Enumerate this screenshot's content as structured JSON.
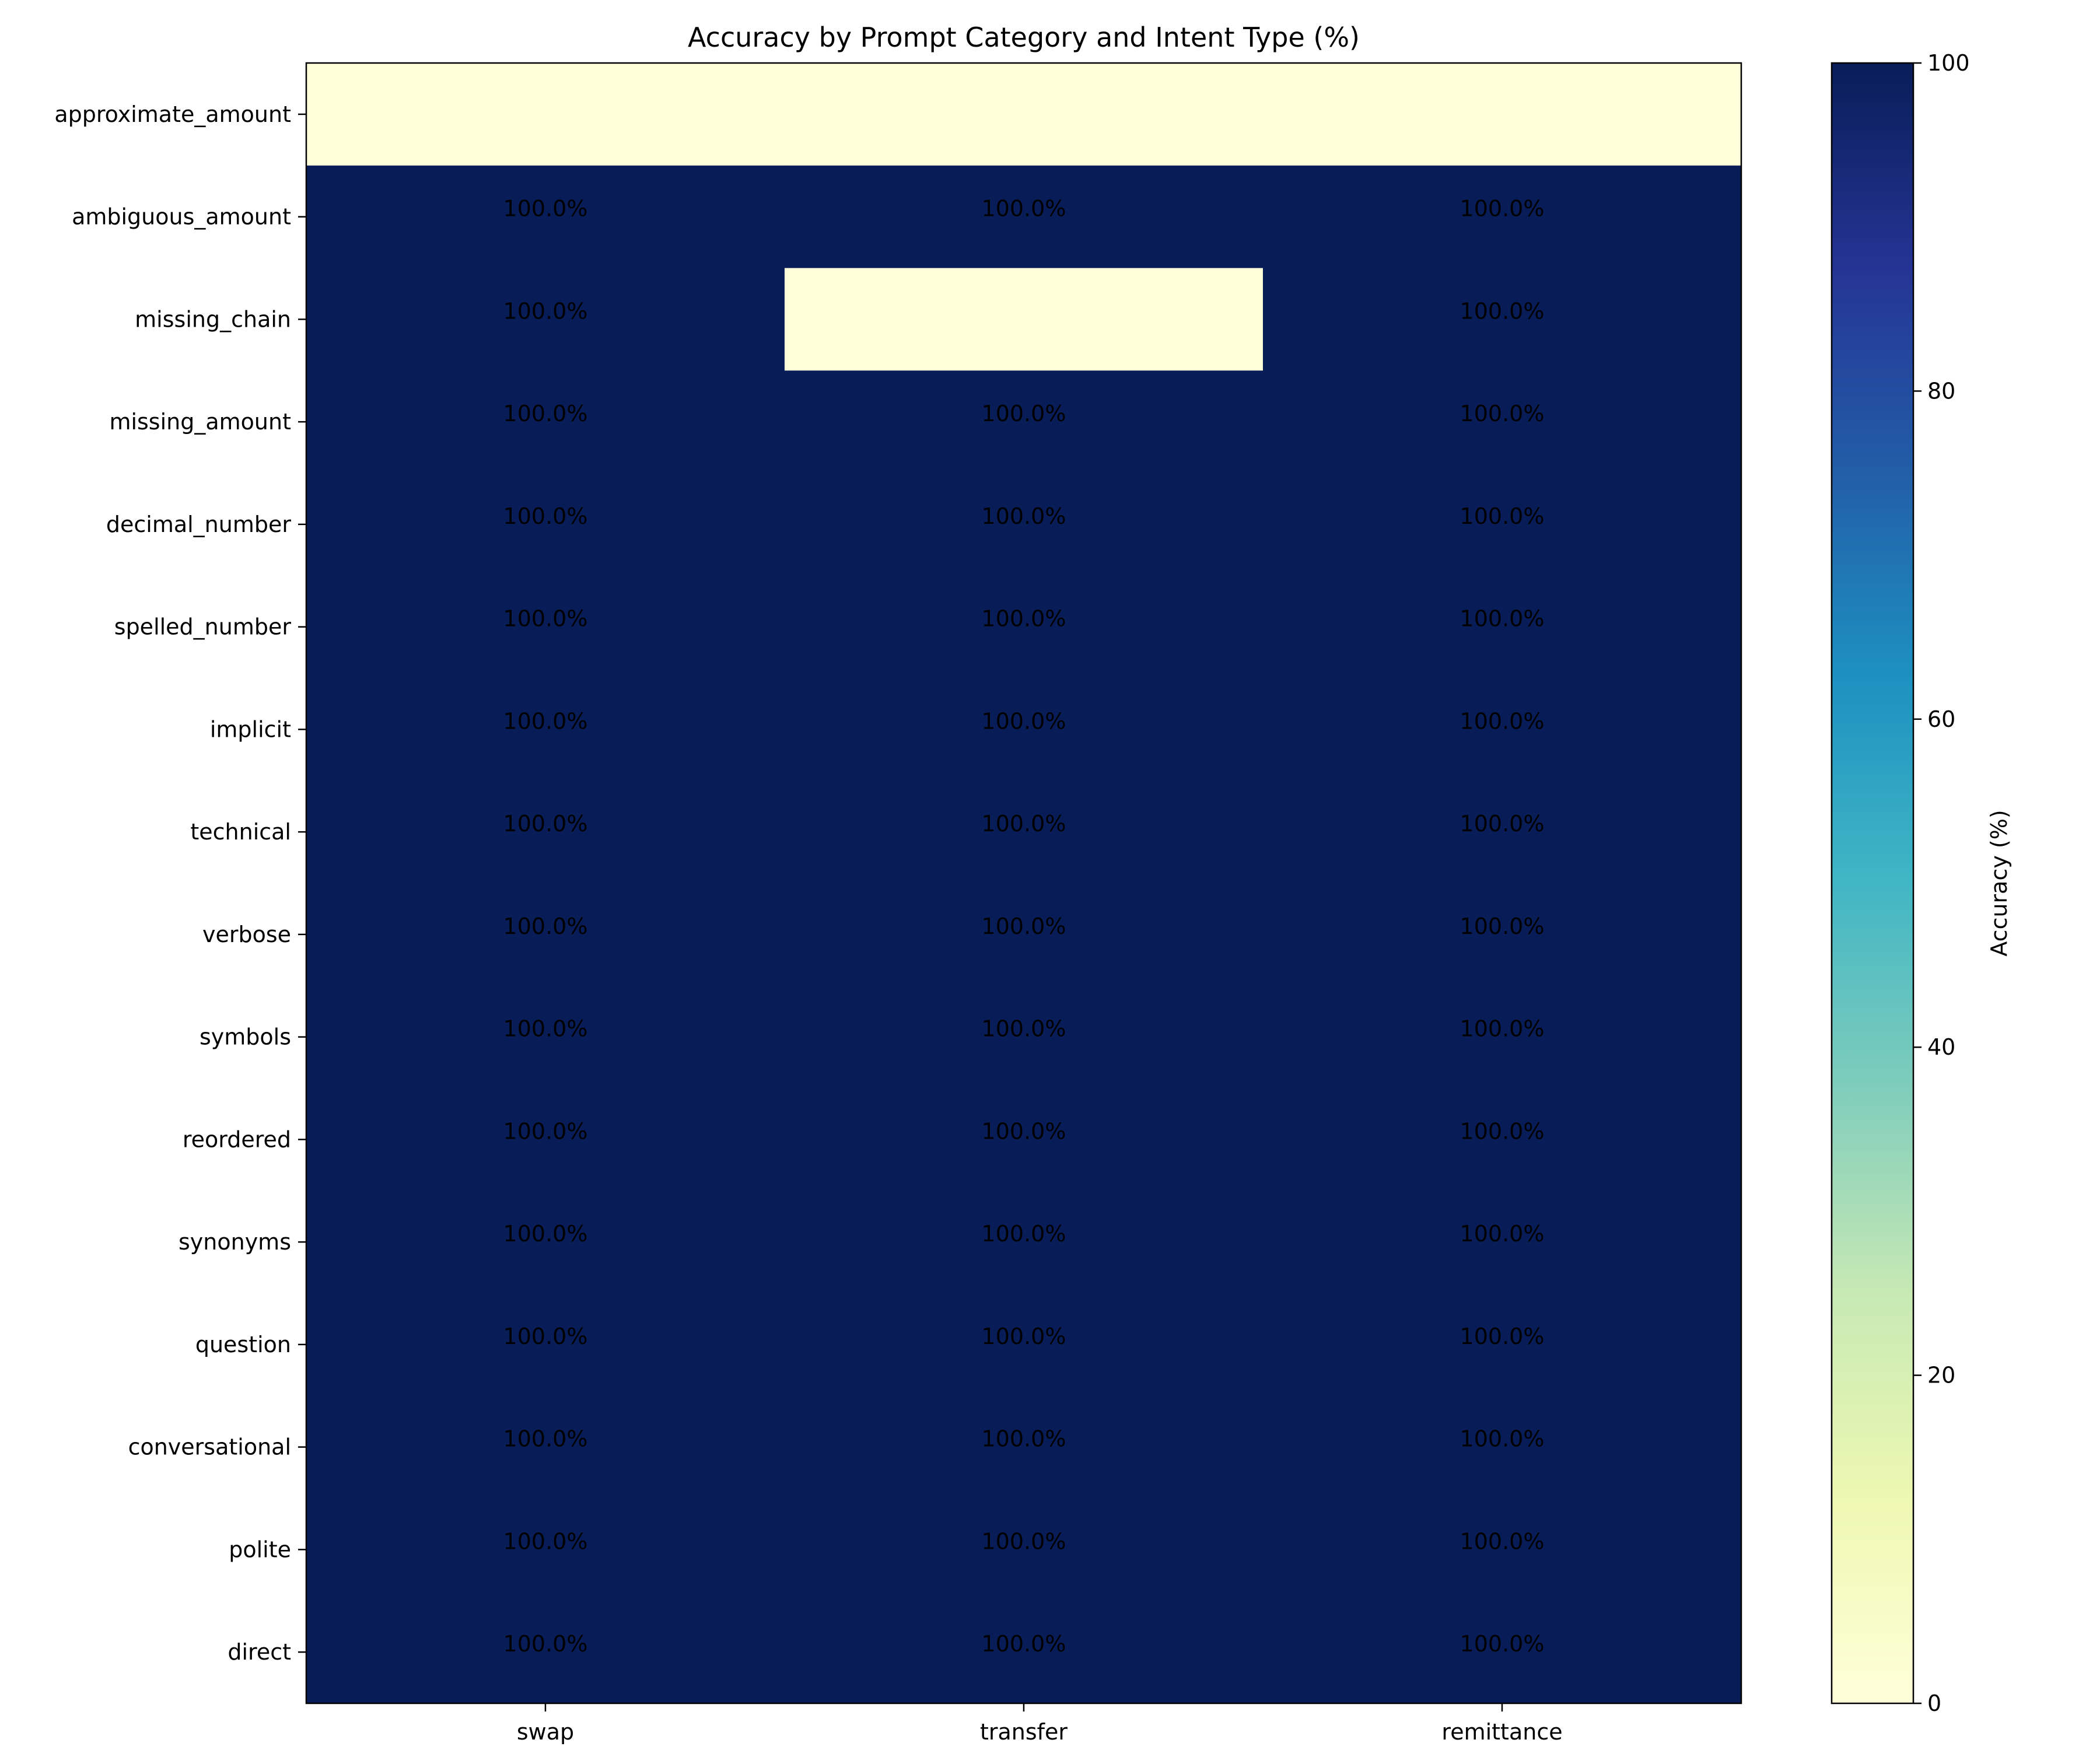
{
  "chart_data": {
    "type": "heatmap",
    "title": "Accuracy by Prompt Category and Intent Type (%)",
    "x_categories": [
      "swap",
      "transfer",
      "remittance"
    ],
    "y_categories": [
      "approximate_amount",
      "ambiguous_amount",
      "missing_chain",
      "missing_amount",
      "decimal_number",
      "spelled_number",
      "implicit",
      "technical",
      "verbose",
      "symbols",
      "reordered",
      "synonyms",
      "question",
      "conversational",
      "polite",
      "direct"
    ],
    "values": [
      [
        null,
        null,
        null
      ],
      [
        100,
        100,
        100
      ],
      [
        100,
        null,
        100
      ],
      [
        100,
        100,
        100
      ],
      [
        100,
        100,
        100
      ],
      [
        100,
        100,
        100
      ],
      [
        100,
        100,
        100
      ],
      [
        100,
        100,
        100
      ],
      [
        100,
        100,
        100
      ],
      [
        100,
        100,
        100
      ],
      [
        100,
        100,
        100
      ],
      [
        100,
        100,
        100
      ],
      [
        100,
        100,
        100
      ],
      [
        100,
        100,
        100
      ],
      [
        100,
        100,
        100
      ],
      [
        100,
        100,
        100
      ]
    ],
    "cell_labels": [
      [
        "",
        "",
        ""
      ],
      [
        "100.0%",
        "100.0%",
        "100.0%"
      ],
      [
        "100.0%",
        "",
        "100.0%"
      ],
      [
        "100.0%",
        "100.0%",
        "100.0%"
      ],
      [
        "100.0%",
        "100.0%",
        "100.0%"
      ],
      [
        "100.0%",
        "100.0%",
        "100.0%"
      ],
      [
        "100.0%",
        "100.0%",
        "100.0%"
      ],
      [
        "100.0%",
        "100.0%",
        "100.0%"
      ],
      [
        "100.0%",
        "100.0%",
        "100.0%"
      ],
      [
        "100.0%",
        "100.0%",
        "100.0%"
      ],
      [
        "100.0%",
        "100.0%",
        "100.0%"
      ],
      [
        "100.0%",
        "100.0%",
        "100.0%"
      ],
      [
        "100.0%",
        "100.0%",
        "100.0%"
      ],
      [
        "100.0%",
        "100.0%",
        "100.0%"
      ],
      [
        "100.0%",
        "100.0%",
        "100.0%"
      ],
      [
        "100.0%",
        "100.0%",
        "100.0%"
      ]
    ],
    "colorbar": {
      "label": "Accuracy (%)",
      "range": [
        0,
        100
      ],
      "ticks": [
        0,
        20,
        40,
        60,
        80,
        100
      ],
      "colormap": "YlGnBu"
    },
    "missing_color": "#ffffd9"
  }
}
